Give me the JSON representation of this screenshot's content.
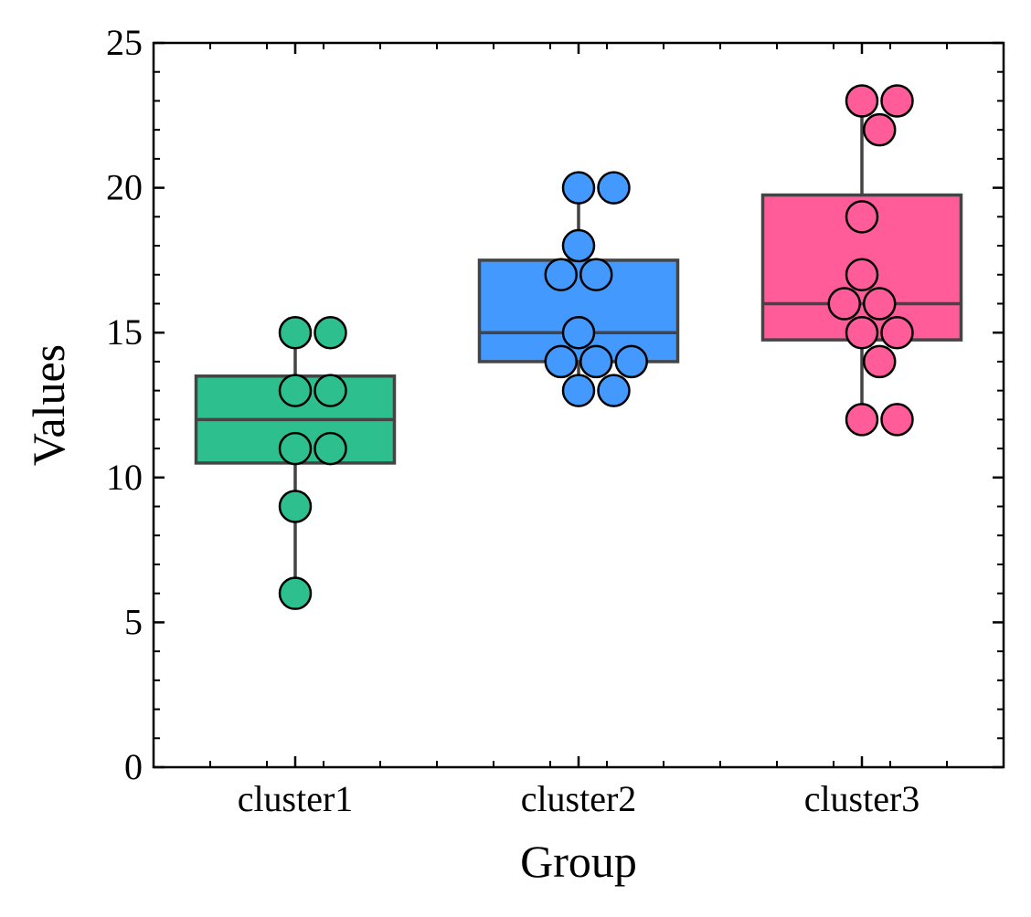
{
  "chart_data": {
    "type": "box",
    "title": "",
    "xlabel": "Group",
    "ylabel": "Values",
    "ylim": [
      0,
      25
    ],
    "yticks": [
      0,
      5,
      10,
      15,
      20,
      25
    ],
    "ytick_labels": [
      "0",
      "5",
      "10",
      "15",
      "20",
      "25"
    ],
    "y_minor_step": 1,
    "categories": [
      "cluster1",
      "cluster2",
      "cluster3"
    ],
    "grid": false,
    "legend": "none",
    "box_edge_color": "#444444",
    "point_edge_color": "#000000",
    "groups": [
      {
        "category": "cluster1",
        "color": "#2EBF8E",
        "q1": 10.5,
        "median": 12,
        "q3": 13.5,
        "whisker_low": 6,
        "whisker_high": 15,
        "points": [
          15,
          15,
          13,
          13,
          11,
          11,
          9,
          6
        ]
      },
      {
        "category": "cluster2",
        "color": "#4499FF",
        "q1": 14,
        "median": 15,
        "q3": 17.5,
        "whisker_low": 13,
        "whisker_high": 20,
        "points": [
          20,
          20,
          18,
          17,
          17,
          15,
          14,
          14,
          14,
          13,
          13
        ]
      },
      {
        "category": "cluster3",
        "color": "#FF5C99",
        "q1": 14.75,
        "median": 16,
        "q3": 19.75,
        "whisker_low": 12,
        "whisker_high": 23,
        "points": [
          23,
          23,
          22,
          19,
          17,
          16,
          16,
          15,
          15,
          14,
          12,
          12
        ]
      }
    ]
  }
}
